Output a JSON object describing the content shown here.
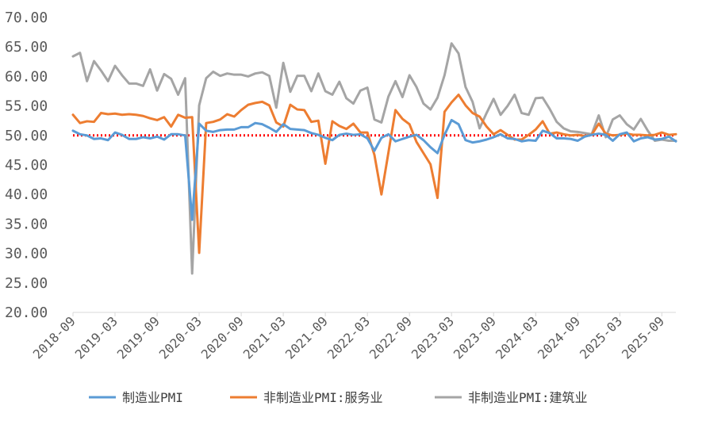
{
  "chart_data": {
    "type": "line",
    "title": "",
    "xlabel": "",
    "ylabel": "",
    "ylim": [
      20,
      70
    ],
    "yticks": [
      "70.00",
      "65.00",
      "60.00",
      "55.00",
      "50.00",
      "45.00",
      "40.00",
      "35.00",
      "30.00",
      "25.00",
      "20.00"
    ],
    "xticks": [
      "2018-09",
      "2019-03",
      "2019-09",
      "2020-03",
      "2020-09",
      "2021-03",
      "2021-09",
      "2022-03",
      "2022-09",
      "2023-03",
      "2023-09",
      "2024-03",
      "2024-09",
      "2025-03",
      "2025-09"
    ],
    "x_start": "2018-09",
    "x_end": "2025-10",
    "reference_line": {
      "value": 50,
      "color": "#ff0000",
      "style": "dotted"
    },
    "legend_position": "bottom",
    "grid": false,
    "series": [
      {
        "name": "制造业PMI",
        "color": "#5b9bd5",
        "values": [
          50.8,
          50.2,
          50.0,
          49.4,
          49.5,
          49.2,
          50.5,
          50.1,
          49.4,
          49.4,
          49.7,
          49.5,
          49.8,
          49.3,
          50.2,
          50.2,
          50.0,
          35.7,
          52.0,
          50.8,
          50.6,
          50.9,
          51.0,
          51.0,
          51.4,
          51.4,
          52.1,
          51.9,
          51.3,
          50.6,
          51.9,
          51.1,
          51.0,
          50.9,
          50.4,
          50.1,
          49.6,
          49.2,
          50.1,
          50.3,
          50.1,
          50.2,
          49.5,
          47.4,
          49.6,
          50.2,
          49.0,
          49.4,
          49.8,
          50.1,
          49.2,
          48.0,
          47.0,
          50.1,
          52.6,
          51.9,
          49.2,
          48.8,
          49.0,
          49.3,
          49.7,
          50.2,
          49.5,
          49.4,
          49.0,
          49.2,
          49.1,
          50.8,
          50.4,
          49.5,
          49.5,
          49.4,
          49.1,
          49.8,
          50.1,
          50.3,
          50.1,
          49.1,
          50.2,
          50.5,
          49.0,
          49.5,
          49.7,
          49.3,
          49.4,
          49.8,
          49.0
        ]
      },
      {
        "name": "非制造业PMI:服务业",
        "color": "#ed7d31",
        "values": [
          53.5,
          52.1,
          52.4,
          52.3,
          53.8,
          53.6,
          53.7,
          53.5,
          53.6,
          53.5,
          53.3,
          52.9,
          52.6,
          53.1,
          51.5,
          53.5,
          53.0,
          53.1,
          30.1,
          52.1,
          52.3,
          52.7,
          53.6,
          53.2,
          54.3,
          55.2,
          55.5,
          55.7,
          55.1,
          52.2,
          51.5,
          55.2,
          54.4,
          54.3,
          52.3,
          52.5,
          45.2,
          52.4,
          51.6,
          51.1,
          52.0,
          50.5,
          50.5,
          46.7,
          40.0,
          47.1,
          54.3,
          52.8,
          51.9,
          48.9,
          47.0,
          45.1,
          39.4,
          54.0,
          55.6,
          56.9,
          55.1,
          53.8,
          53.2,
          51.5,
          50.2,
          50.9,
          50.1,
          49.3,
          49.3,
          50.1,
          51.0,
          52.4,
          50.3,
          50.5,
          50.2,
          50.0,
          50.1,
          49.9,
          50.1,
          52.0,
          50.3,
          50.0,
          50.1,
          50.3,
          50.1,
          50.1,
          50.0,
          50.1,
          50.5,
          50.1,
          50.2
        ]
      },
      {
        "name": "非制造业PMI:建筑业",
        "color": "#a5a5a5",
        "values": [
          63.4,
          64.0,
          59.2,
          62.6,
          61.0,
          59.2,
          61.8,
          60.2,
          58.8,
          58.8,
          58.4,
          61.2,
          57.6,
          60.4,
          59.6,
          56.9,
          59.7,
          26.6,
          55.1,
          59.7,
          60.8,
          60.1,
          60.5,
          60.3,
          60.3,
          60.0,
          60.5,
          60.7,
          60.1,
          54.7,
          62.3,
          57.4,
          60.1,
          60.1,
          57.5,
          60.5,
          57.5,
          56.9,
          59.1,
          56.3,
          55.4,
          57.6,
          58.1,
          52.7,
          52.2,
          56.6,
          59.2,
          56.5,
          60.2,
          58.2,
          55.4,
          54.4,
          56.4,
          60.2,
          65.6,
          63.9,
          58.2,
          55.7,
          51.2,
          53.8,
          56.2,
          53.5,
          55.0,
          56.9,
          53.8,
          53.5,
          56.3,
          56.4,
          54.5,
          52.3,
          51.2,
          50.7,
          50.6,
          50.4,
          50.2,
          53.4,
          49.7,
          52.7,
          53.4,
          51.9,
          51.0,
          52.8,
          50.8,
          49.1,
          49.3,
          49.1,
          49.1
        ]
      }
    ]
  }
}
